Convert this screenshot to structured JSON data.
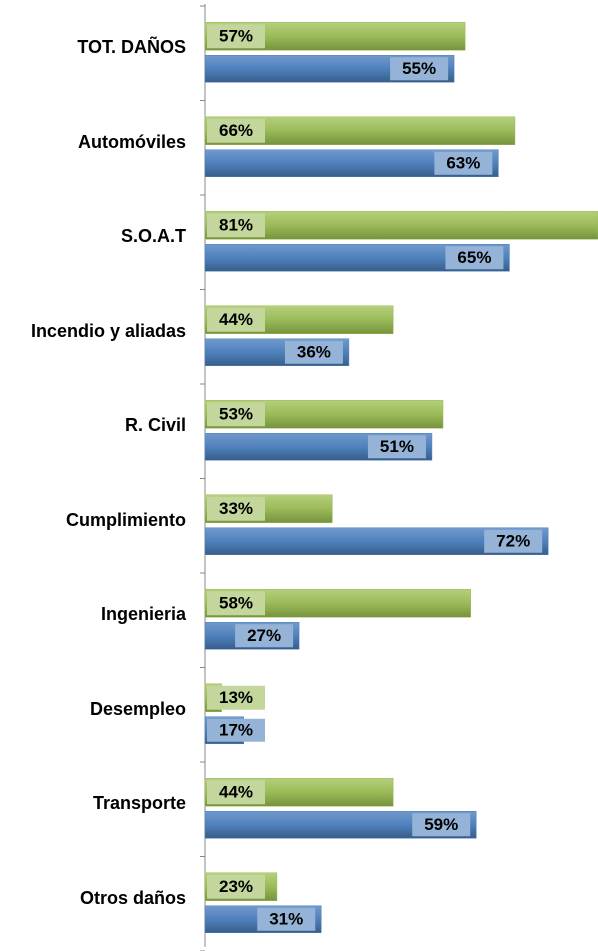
{
  "chart_data": {
    "type": "hbar",
    "categories": [
      "TOT. DAÑOS",
      "Automóviles",
      "S.O.A.T",
      "Incendio y aliadas",
      "R. Civil",
      "Cumplimiento",
      "Ingenieria",
      "Desempleo",
      "Transporte",
      "Otros daños"
    ],
    "series": [
      {
        "color": "#9bbb59",
        "label_color": "#c3d69b",
        "values": [
          57,
          66,
          81,
          44,
          53,
          33,
          58,
          13,
          44,
          23
        ],
        "value_labels": [
          "57%",
          "66%",
          "81%",
          "44%",
          "53%",
          "33%",
          "58%",
          "13%",
          "44%",
          "23%"
        ]
      },
      {
        "color": "#4f81bd",
        "label_color": "#95b3d7",
        "values": [
          55,
          63,
          65,
          36,
          51,
          72,
          27,
          17,
          59,
          31
        ],
        "value_labels": [
          "55%",
          "63%",
          "65%",
          "36%",
          "51%",
          "72%",
          "27%",
          "17%",
          "59%",
          "31%"
        ]
      }
    ],
    "xlim": [
      10,
      81
    ]
  }
}
